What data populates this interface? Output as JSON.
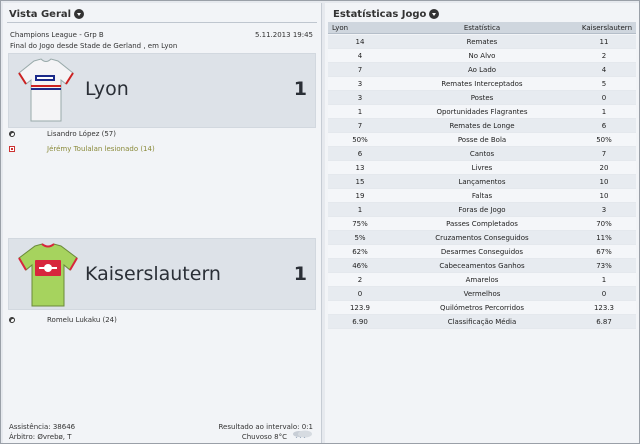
{
  "match_overview": {
    "title": "Vista Geral",
    "competition": "Champions League - Grp B",
    "date": "5.11.2013 19:45",
    "venue": "Final do Jogo desde Stade de Gerland , em Lyon",
    "home": {
      "name": "Lyon",
      "score": "1",
      "kit_icon": "white-kit-icon",
      "events": [
        {
          "type": "goal",
          "icon": "ball-icon",
          "text": "Lisandro López (57)"
        },
        {
          "type": "injury",
          "icon": "injury-icon",
          "text": "Jérémy Toulalan lesionado (14)"
        }
      ]
    },
    "away": {
      "name": "Kaiserslautern",
      "score": "1",
      "kit_icon": "green-kit-icon",
      "events": [
        {
          "type": "goal",
          "icon": "ball-icon",
          "text": "Romelu Lukaku (24)"
        }
      ]
    },
    "footer": {
      "attendance": "Assistência: 38646",
      "referee": "Árbitro: Øvrebø, T",
      "halftime": "Resultado ao intervalo: 0:1",
      "weather": "Chuvoso 8°C",
      "weather_icon": "rain-cloud-icon"
    }
  },
  "match_stats": {
    "title": "Estatísticas Jogo",
    "headers": {
      "home": "Lyon",
      "label": "Estatística",
      "away": "Kaiserslautern"
    },
    "rows": [
      {
        "home": "14",
        "label": "Remates",
        "away": "11"
      },
      {
        "home": "4",
        "label": "No Alvo",
        "away": "2"
      },
      {
        "home": "7",
        "label": "Ao Lado",
        "away": "4"
      },
      {
        "home": "3",
        "label": "Remates Interceptados",
        "away": "5"
      },
      {
        "home": "3",
        "label": "Postes",
        "away": "0"
      },
      {
        "home": "1",
        "label": "Oportunidades Flagrantes",
        "away": "1"
      },
      {
        "home": "7",
        "label": "Remates de Longe",
        "away": "6"
      },
      {
        "home": "50%",
        "label": "Posse de Bola",
        "away": "50%"
      },
      {
        "home": "6",
        "label": "Cantos",
        "away": "7"
      },
      {
        "home": "13",
        "label": "Livres",
        "away": "20"
      },
      {
        "home": "15",
        "label": "Lançamentos",
        "away": "10"
      },
      {
        "home": "19",
        "label": "Faltas",
        "away": "10"
      },
      {
        "home": "1",
        "label": "Foras de Jogo",
        "away": "3"
      },
      {
        "home": "75%",
        "label": "Passes Completados",
        "away": "70%"
      },
      {
        "home": "5%",
        "label": "Cruzamentos Conseguidos",
        "away": "11%"
      },
      {
        "home": "62%",
        "label": "Desarmes Conseguidos",
        "away": "67%"
      },
      {
        "home": "46%",
        "label": "Cabeceamentos Ganhos",
        "away": "73%"
      },
      {
        "home": "2",
        "label": "Amarelos",
        "away": "1"
      },
      {
        "home": "0",
        "label": "Vermelhos",
        "away": "0"
      },
      {
        "home": "123.9",
        "label": "Quilómetros Percorridos",
        "away": "123.3"
      },
      {
        "home": "6.90",
        "label": "Classificação Média",
        "away": "6.87"
      }
    ]
  }
}
